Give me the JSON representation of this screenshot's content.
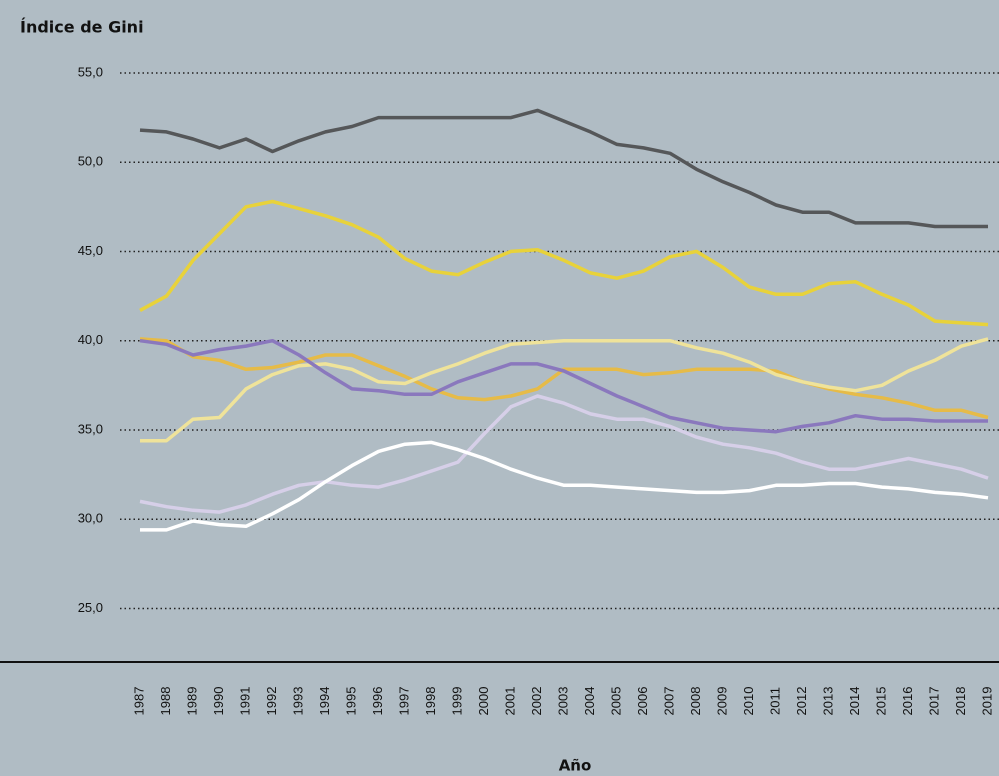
{
  "chart_data": {
    "type": "line",
    "title": "Índice de Gini",
    "x_label": "Año",
    "categories": [
      "1987",
      "1988",
      "1989",
      "1990",
      "1991",
      "1992",
      "1993",
      "1994",
      "1995",
      "1996",
      "1997",
      "1998",
      "1999",
      "2000",
      "2001",
      "2002",
      "2003",
      "2004",
      "2005",
      "2006",
      "2007",
      "2008",
      "2009",
      "2010",
      "2011",
      "2012",
      "2013",
      "2014",
      "2015",
      "2016",
      "2017",
      "2018",
      "2019"
    ],
    "ylim": [
      22,
      56
    ],
    "yticks": [
      {
        "value": 25,
        "label": "25,0"
      },
      {
        "value": 30,
        "label": "30,0"
      },
      {
        "value": 35,
        "label": "35,0"
      },
      {
        "value": 40,
        "label": "40,0"
      },
      {
        "value": 45,
        "label": "45,0"
      },
      {
        "value": 50,
        "label": "50,0"
      },
      {
        "value": 55,
        "label": "55,0"
      }
    ],
    "grid": true,
    "series": [
      {
        "color": "#555759",
        "values": [
          51.8,
          51.7,
          51.3,
          50.8,
          51.3,
          50.6,
          51.2,
          51.7,
          52.0,
          52.5,
          52.5,
          52.5,
          52.5,
          52.5,
          52.5,
          52.9,
          52.3,
          51.7,
          51.0,
          50.8,
          50.5,
          49.6,
          48.9,
          48.3,
          47.6,
          47.2,
          47.2,
          46.6,
          46.6,
          46.6,
          46.4,
          46.4,
          46.4
        ]
      },
      {
        "color": "#e8d23a",
        "values": [
          41.7,
          42.5,
          44.5,
          46.0,
          47.5,
          47.8,
          47.4,
          47.0,
          46.5,
          45.8,
          44.6,
          43.9,
          43.7,
          44.4,
          45.0,
          45.1,
          44.5,
          43.8,
          43.5,
          43.9,
          44.7,
          45.0,
          44.1,
          43.0,
          42.6,
          42.6,
          43.2,
          43.3,
          42.6,
          42.0,
          41.1,
          41.0,
          40.9
        ]
      },
      {
        "color": "#e6bb48",
        "values": [
          40.1,
          40.0,
          39.1,
          38.9,
          38.4,
          38.5,
          38.8,
          39.2,
          39.2,
          38.6,
          38.0,
          37.3,
          36.8,
          36.7,
          36.9,
          37.3,
          38.4,
          38.4,
          38.4,
          38.1,
          38.2,
          38.4,
          38.4,
          38.4,
          38.3,
          37.7,
          37.3,
          37.0,
          36.8,
          36.5,
          36.1,
          36.1,
          35.7
        ]
      },
      {
        "color": "#efe39a",
        "values": [
          34.4,
          34.4,
          35.6,
          35.7,
          37.3,
          38.1,
          38.6,
          38.7,
          38.4,
          37.7,
          37.6,
          38.2,
          38.7,
          39.3,
          39.8,
          39.9,
          40.0,
          40.0,
          40.0,
          40.0,
          40.0,
          39.6,
          39.3,
          38.8,
          38.1,
          37.7,
          37.4,
          37.2,
          37.5,
          38.3,
          38.9,
          39.7,
          40.1
        ]
      },
      {
        "color": "#8a78bd",
        "values": [
          40.0,
          39.8,
          39.2,
          39.5,
          39.7,
          40.0,
          39.2,
          38.2,
          37.3,
          37.2,
          37.0,
          37.0,
          37.7,
          38.2,
          38.7,
          38.7,
          38.3,
          37.6,
          36.9,
          36.3,
          35.7,
          35.4,
          35.1,
          35.0,
          34.9,
          35.2,
          35.4,
          35.8,
          35.6,
          35.6,
          35.5,
          35.5,
          35.5
        ]
      },
      {
        "color": "#d6cfe8",
        "values": [
          31.0,
          30.7,
          30.5,
          30.4,
          30.8,
          31.4,
          31.9,
          32.1,
          31.9,
          31.8,
          32.2,
          32.7,
          33.2,
          34.8,
          36.3,
          36.9,
          36.5,
          35.9,
          35.6,
          35.6,
          35.2,
          34.6,
          34.2,
          34.0,
          33.7,
          33.2,
          32.8,
          32.8,
          33.1,
          33.4,
          33.1,
          32.8,
          32.3
        ]
      },
      {
        "color": "#ffffff",
        "values": [
          29.4,
          29.4,
          29.9,
          29.7,
          29.6,
          30.3,
          31.1,
          32.1,
          33.0,
          33.8,
          34.2,
          34.3,
          33.9,
          33.4,
          32.8,
          32.3,
          31.9,
          31.9,
          31.8,
          31.7,
          31.6,
          31.5,
          31.5,
          31.6,
          31.9,
          31.9,
          32.0,
          32.0,
          31.8,
          31.7,
          31.5,
          31.4,
          31.2
        ]
      }
    ]
  }
}
